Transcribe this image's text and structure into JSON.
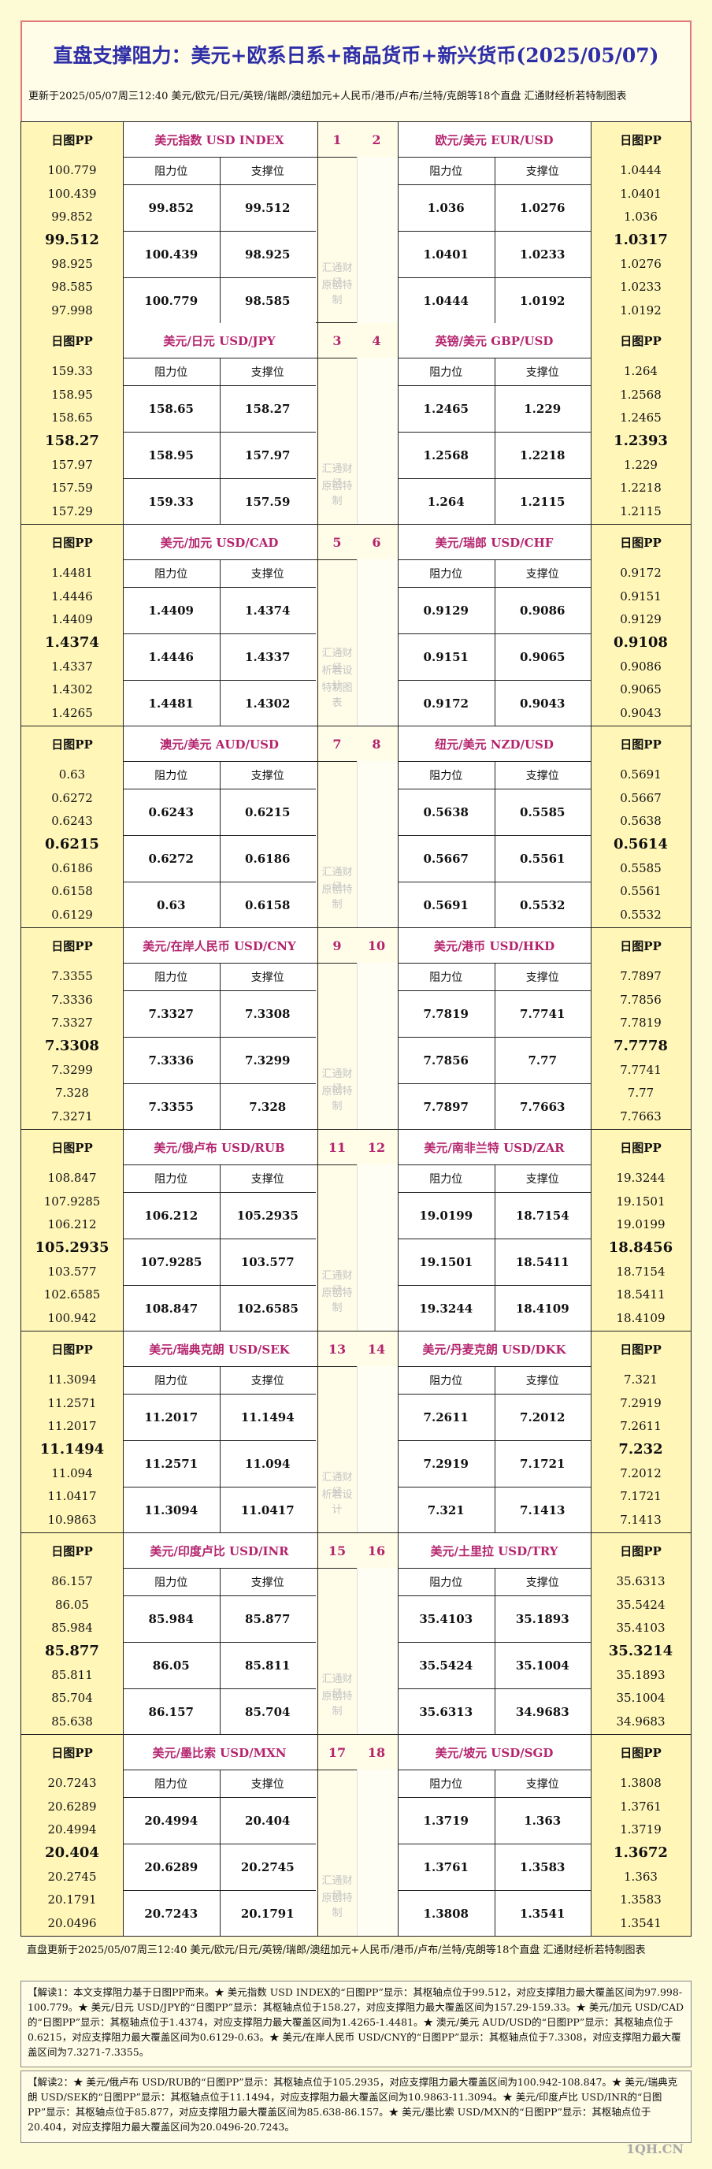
{
  "header": {
    "title": "直盘支撑阻力：美元+欧系日系+商品货币+新兴货币(2025/05/07)",
    "update": "更新于2025/05/07周三12:40 美元/欧元/日元/英镑/瑞郎/澳纽加元+人民币/港币/卢布/兰特/克朗等18个直盘 汇通财经析若特制图表"
  },
  "table": {
    "pp_label": "日图PP",
    "columns": [
      "阻力位",
      "支撑位"
    ],
    "blocks": [
      {
        "numbers": [
          "1",
          "2"
        ],
        "watermark": [
          "汇通财经",
          "原创特制"
        ],
        "left_pp": [
          "100.779",
          "100.439",
          "99.852",
          "99.512",
          "98.925",
          "98.585",
          "97.998"
        ],
        "left": {
          "name": "美元指数 USD INDEX",
          "rows": [
            [
              "99.852",
              "99.512"
            ],
            [
              "100.439",
              "98.925"
            ],
            [
              "100.779",
              "98.585"
            ]
          ]
        },
        "right": {
          "name": "欧元/美元 EUR/USD",
          "rows": [
            [
              "1.036",
              "1.0276"
            ],
            [
              "1.0401",
              "1.0233"
            ],
            [
              "1.0444",
              "1.0192"
            ]
          ]
        },
        "right_pp": [
          "1.0444",
          "1.0401",
          "1.036",
          "1.0317",
          "1.0276",
          "1.0233",
          "1.0192"
        ]
      },
      {
        "numbers": [
          "3",
          "4"
        ],
        "watermark": [
          "汇通财经",
          "原创特制"
        ],
        "left_pp": [
          "159.33",
          "158.95",
          "158.65",
          "158.27",
          "157.97",
          "157.59",
          "157.29"
        ],
        "left": {
          "name": "美元/日元 USD/JPY",
          "rows": [
            [
              "158.65",
              "158.27"
            ],
            [
              "158.95",
              "157.97"
            ],
            [
              "159.33",
              "157.59"
            ]
          ]
        },
        "right": {
          "name": "英镑/美元 GBP/USD",
          "rows": [
            [
              "1.2465",
              "1.229"
            ],
            [
              "1.2568",
              "1.2218"
            ],
            [
              "1.264",
              "1.2115"
            ]
          ]
        },
        "right_pp": [
          "1.264",
          "1.2568",
          "1.2465",
          "1.2393",
          "1.229",
          "1.2218",
          "1.2115"
        ]
      },
      {
        "numbers": [
          "5",
          "6"
        ],
        "watermark": [
          "汇通财经",
          "析若设计",
          "特制图表"
        ],
        "left_pp": [
          "1.4481",
          "1.4446",
          "1.4409",
          "1.4374",
          "1.4337",
          "1.4302",
          "1.4265"
        ],
        "left": {
          "name": "美元/加元 USD/CAD",
          "rows": [
            [
              "1.4409",
              "1.4374"
            ],
            [
              "1.4446",
              "1.4337"
            ],
            [
              "1.4481",
              "1.4302"
            ]
          ]
        },
        "right": {
          "name": "美元/瑞郎 USD/CHF",
          "rows": [
            [
              "0.9129",
              "0.9086"
            ],
            [
              "0.9151",
              "0.9065"
            ],
            [
              "0.9172",
              "0.9043"
            ]
          ]
        },
        "right_pp": [
          "0.9172",
          "0.9151",
          "0.9129",
          "0.9108",
          "0.9086",
          "0.9065",
          "0.9043"
        ]
      },
      {
        "numbers": [
          "7",
          "8"
        ],
        "watermark": [
          "汇通财经",
          "原创特制"
        ],
        "left_pp": [
          "0.63",
          "0.6272",
          "0.6243",
          "0.6215",
          "0.6186",
          "0.6158",
          "0.6129"
        ],
        "left": {
          "name": "澳元/美元 AUD/USD",
          "rows": [
            [
              "0.6243",
              "0.6215"
            ],
            [
              "0.6272",
              "0.6186"
            ],
            [
              "0.63",
              "0.6158"
            ]
          ]
        },
        "right": {
          "name": "纽元/美元 NZD/USD",
          "rows": [
            [
              "0.5638",
              "0.5585"
            ],
            [
              "0.5667",
              "0.5561"
            ],
            [
              "0.5691",
              "0.5532"
            ]
          ]
        },
        "right_pp": [
          "0.5691",
          "0.5667",
          "0.5638",
          "0.5614",
          "0.5585",
          "0.5561",
          "0.5532"
        ]
      },
      {
        "numbers": [
          "9",
          "10"
        ],
        "watermark": [
          "汇通财经",
          "原创特制"
        ],
        "left_pp": [
          "7.3355",
          "7.3336",
          "7.3327",
          "7.3308",
          "7.3299",
          "7.328",
          "7.3271"
        ],
        "left": {
          "name": "美元/在岸人民币 USD/CNY",
          "rows": [
            [
              "7.3327",
              "7.3308"
            ],
            [
              "7.3336",
              "7.3299"
            ],
            [
              "7.3355",
              "7.328"
            ]
          ]
        },
        "right": {
          "name": "美元/港币 USD/HKD",
          "rows": [
            [
              "7.7819",
              "7.7741"
            ],
            [
              "7.7856",
              "7.77"
            ],
            [
              "7.7897",
              "7.7663"
            ]
          ]
        },
        "right_pp": [
          "7.7897",
          "7.7856",
          "7.7819",
          "7.7778",
          "7.7741",
          "7.77",
          "7.7663"
        ]
      },
      {
        "numbers": [
          "11",
          "12"
        ],
        "watermark": [
          "汇通财经",
          "原创特制"
        ],
        "left_pp": [
          "108.847",
          "107.9285",
          "106.212",
          "105.2935",
          "103.577",
          "102.6585",
          "100.942"
        ],
        "left": {
          "name": "美元/俄卢布 USD/RUB",
          "rows": [
            [
              "106.212",
              "105.2935"
            ],
            [
              "107.9285",
              "103.577"
            ],
            [
              "108.847",
              "102.6585"
            ]
          ]
        },
        "right": {
          "name": "美元/南非兰特 USD/ZAR",
          "rows": [
            [
              "19.0199",
              "18.7154"
            ],
            [
              "19.1501",
              "18.5411"
            ],
            [
              "19.3244",
              "18.4109"
            ]
          ]
        },
        "right_pp": [
          "19.3244",
          "19.1501",
          "19.0199",
          "18.8456",
          "18.7154",
          "18.5411",
          "18.4109"
        ]
      },
      {
        "numbers": [
          "13",
          "14"
        ],
        "watermark": [
          "汇通财经",
          "析若设计"
        ],
        "left_pp": [
          "11.3094",
          "11.2571",
          "11.2017",
          "11.1494",
          "11.094",
          "11.0417",
          "10.9863"
        ],
        "left": {
          "name": "美元/瑞典克朗 USD/SEK",
          "rows": [
            [
              "11.2017",
              "11.1494"
            ],
            [
              "11.2571",
              "11.094"
            ],
            [
              "11.3094",
              "11.0417"
            ]
          ]
        },
        "right": {
          "name": "美元/丹麦克朗 USD/DKK",
          "rows": [
            [
              "7.2611",
              "7.2012"
            ],
            [
              "7.2919",
              "7.1721"
            ],
            [
              "7.321",
              "7.1413"
            ]
          ]
        },
        "right_pp": [
          "7.321",
          "7.2919",
          "7.2611",
          "7.232",
          "7.2012",
          "7.1721",
          "7.1413"
        ]
      },
      {
        "numbers": [
          "15",
          "16"
        ],
        "watermark": [
          "汇通财经",
          "原创特制"
        ],
        "left_pp": [
          "86.157",
          "86.05",
          "85.984",
          "85.877",
          "85.811",
          "85.704",
          "85.638"
        ],
        "left": {
          "name": "美元/印度卢比 USD/INR",
          "rows": [
            [
              "85.984",
              "85.877"
            ],
            [
              "86.05",
              "85.811"
            ],
            [
              "86.157",
              "85.704"
            ]
          ]
        },
        "right": {
          "name": "美元/土里拉 USD/TRY",
          "rows": [
            [
              "35.4103",
              "35.1893"
            ],
            [
              "35.5424",
              "35.1004"
            ],
            [
              "35.6313",
              "34.9683"
            ]
          ]
        },
        "right_pp": [
          "35.6313",
          "35.5424",
          "35.4103",
          "35.3214",
          "35.1893",
          "35.1004",
          "34.9683"
        ]
      },
      {
        "numbers": [
          "17",
          "18"
        ],
        "watermark": [
          "汇通财经",
          "原创特制"
        ],
        "left_pp": [
          "20.7243",
          "20.6289",
          "20.4994",
          "20.404",
          "20.2745",
          "20.1791",
          "20.0496"
        ],
        "left": {
          "name": "美元/墨比索 USD/MXN",
          "rows": [
            [
              "20.4994",
              "20.404"
            ],
            [
              "20.6289",
              "20.2745"
            ],
            [
              "20.7243",
              "20.1791"
            ]
          ]
        },
        "right": {
          "name": "美元/坡元 USD/SGD",
          "rows": [
            [
              "1.3719",
              "1.363"
            ],
            [
              "1.3761",
              "1.3583"
            ],
            [
              "1.3808",
              "1.3541"
            ]
          ]
        },
        "right_pp": [
          "1.3808",
          "1.3761",
          "1.3719",
          "1.3672",
          "1.363",
          "1.3583",
          "1.3541"
        ]
      }
    ]
  },
  "footer": {
    "update": "直盘更新于2025/05/07周三12:40 美元/欧元/日元/英镑/瑞郎/澳纽加元+人民币/港币/卢布/兰特/克朗等18个直盘 汇通财经析若特制图表",
    "notes": [
      "【解读1：本文支撑阻力基于日图PP而来。★ 美元指数 USD INDEX的“日图PP”显示：其枢轴点位于99.512，对应支撑阻力最大覆盖区间为97.998-100.779。★ 美元/日元 USD/JPY的“日图PP”显示：其枢轴点位于158.27，对应支撑阻力最大覆盖区间为157.29-159.33。★ 美元/加元 USD/CAD的“日图PP”显示：其枢轴点位于1.4374，对应支撑阻力最大覆盖区间为1.4265-1.4481。★ 澳元/美元 AUD/USD的“日图PP”显示：其枢轴点位于0.6215，对应支撑阻力最大覆盖区间为0.6129-0.63。★ 美元/在岸人民币 USD/CNY的“日图PP”显示：其枢轴点位于7.3308，对应支撑阻力最大覆盖区间为7.3271-7.3355。",
      "【解读2：★ 美元/俄卢布 USD/RUB的“日图PP”显示：其枢轴点位于105.2935，对应支撑阻力最大覆盖区间为100.942-108.847。★ 美元/瑞典克朗 USD/SEK的“日图PP”显示：其枢轴点位于11.1494，对应支撑阻力最大覆盖区间为10.9863-11.3094。★ 美元/印度卢比 USD/INR的“日图PP”显示：其枢轴点位于85.877，对应支撑阻力最大覆盖区间为85.638-86.157。★ 美元/墨比索 USD/MXN的“日图PP”显示：其枢轴点位于20.404，对应支撑阻力最大覆盖区间为20.0496-20.7243。"
    ],
    "site": "1QH.CN"
  }
}
